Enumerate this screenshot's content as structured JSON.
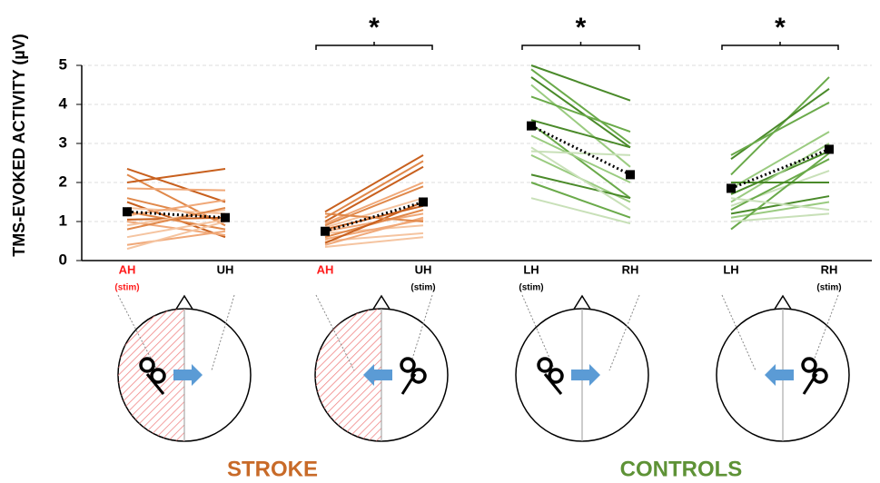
{
  "chart_data": {
    "type": "slope",
    "ylabel": "TMS-EVOKED ACTIVITY (µV)",
    "ylim": [
      0,
      5
    ],
    "yticks": [
      0,
      1,
      2,
      3,
      4,
      5
    ],
    "grid": true,
    "mean_color": "#000000",
    "groups": [
      {
        "label": "STROKE",
        "color": "#c86a28"
      },
      {
        "label": "CONTROLS",
        "color": "#5e9236"
      }
    ],
    "panels": [
      {
        "categories": [
          "AH",
          "UH"
        ],
        "sublabels": [
          "(stim)",
          null
        ],
        "category_colors": [
          "#ff1a1a",
          "#000000"
        ],
        "sublabel_colors": [
          "#ff1a1a",
          "#000000"
        ],
        "mean": [
          1.25,
          1.1
        ],
        "series": [
          {
            "color": "#c8601e",
            "values": [
              2.35,
              1.5
            ]
          },
          {
            "color": "#e0884a",
            "values": [
              2.2,
              0.9
            ]
          },
          {
            "color": "#c8601e",
            "values": [
              2.0,
              2.35
            ]
          },
          {
            "color": "#f0a878",
            "values": [
              1.85,
              1.8
            ]
          },
          {
            "color": "#e0884a",
            "values": [
              1.6,
              1.0
            ]
          },
          {
            "color": "#c8601e",
            "values": [
              1.5,
              0.6
            ]
          },
          {
            "color": "#f5c4a0",
            "values": [
              1.35,
              1.2
            ]
          },
          {
            "color": "#e0884a",
            "values": [
              1.25,
              0.8
            ]
          },
          {
            "color": "#f0a878",
            "values": [
              1.15,
              1.55
            ]
          },
          {
            "color": "#c8601e",
            "values": [
              1.05,
              1.1
            ]
          },
          {
            "color": "#f0a878",
            "values": [
              1.0,
              0.65
            ]
          },
          {
            "color": "#f5c4a0",
            "values": [
              0.9,
              1.3
            ]
          },
          {
            "color": "#e0884a",
            "values": [
              0.8,
              1.35
            ]
          },
          {
            "color": "#f5c4a0",
            "values": [
              0.6,
              1.05
            ]
          },
          {
            "color": "#f0a878",
            "values": [
              0.4,
              0.75
            ]
          },
          {
            "color": "#f5c4a0",
            "values": [
              0.3,
              1.0
            ]
          }
        ]
      },
      {
        "categories": [
          "AH",
          "UH"
        ],
        "sublabels": [
          null,
          "(stim)"
        ],
        "category_colors": [
          "#ff1a1a",
          "#000000"
        ],
        "sublabel_colors": [
          "#000000",
          "#000000"
        ],
        "annotation": "*",
        "mean": [
          0.75,
          1.5
        ],
        "series": [
          {
            "color": "#c8601e",
            "values": [
              1.25,
              2.7
            ]
          },
          {
            "color": "#e0884a",
            "values": [
              1.1,
              2.55
            ]
          },
          {
            "color": "#c8601e",
            "values": [
              1.0,
              2.4
            ]
          },
          {
            "color": "#f0a878",
            "values": [
              0.95,
              2.0
            ]
          },
          {
            "color": "#e0884a",
            "values": [
              0.9,
              1.9
            ]
          },
          {
            "color": "#f5c4a0",
            "values": [
              0.85,
              1.6
            ]
          },
          {
            "color": "#c8601e",
            "values": [
              0.8,
              1.4
            ]
          },
          {
            "color": "#f0a878",
            "values": [
              0.75,
              1.2
            ]
          },
          {
            "color": "#f5c4a0",
            "values": [
              0.7,
              0.9
            ]
          },
          {
            "color": "#e0884a",
            "values": [
              0.6,
              1.3
            ]
          },
          {
            "color": "#f0a878",
            "values": [
              0.55,
              1.05
            ]
          },
          {
            "color": "#f5c4a0",
            "values": [
              0.5,
              0.7
            ]
          },
          {
            "color": "#c8601e",
            "values": [
              0.45,
              1.5
            ]
          },
          {
            "color": "#f0a878",
            "values": [
              0.4,
              1.1
            ]
          },
          {
            "color": "#f5c4a0",
            "values": [
              0.35,
              0.6
            ]
          },
          {
            "color": "#e0884a",
            "values": [
              1.2,
              1.0
            ]
          }
        ]
      },
      {
        "categories": [
          "LH",
          "RH"
        ],
        "sublabels": [
          "(stim)",
          null
        ],
        "category_colors": [
          "#000000",
          "#000000"
        ],
        "sublabel_colors": [
          "#000000",
          "#000000"
        ],
        "annotation": "*",
        "mean": [
          3.45,
          2.2
        ],
        "series": [
          {
            "color": "#4a8a2a",
            "values": [
              5.0,
              4.1
            ]
          },
          {
            "color": "#6aaa4a",
            "values": [
              4.9,
              3.0
            ]
          },
          {
            "color": "#4a8a2a",
            "values": [
              4.7,
              2.9
            ]
          },
          {
            "color": "#9acb80",
            "values": [
              4.5,
              2.4
            ]
          },
          {
            "color": "#6aaa4a",
            "values": [
              4.2,
              3.3
            ]
          },
          {
            "color": "#4a8a2a",
            "values": [
              3.6,
              2.9
            ]
          },
          {
            "color": "#6aaa4a",
            "values": [
              3.5,
              1.6
            ]
          },
          {
            "color": "#9acb80",
            "values": [
              3.2,
              2.0
            ]
          },
          {
            "color": "#c8e0b8",
            "values": [
              2.8,
              2.7
            ]
          },
          {
            "color": "#9acb80",
            "values": [
              2.7,
              1.5
            ]
          },
          {
            "color": "#4a8a2a",
            "values": [
              2.2,
              1.6
            ]
          },
          {
            "color": "#6aaa4a",
            "values": [
              2.0,
              1.1
            ]
          },
          {
            "color": "#c8e0b8",
            "values": [
              1.6,
              0.95
            ]
          },
          {
            "color": "#c8e0b8",
            "values": [
              2.9,
              1.3
            ]
          }
        ]
      },
      {
        "categories": [
          "LH",
          "RH"
        ],
        "sublabels": [
          null,
          "(stim)"
        ],
        "category_colors": [
          "#000000",
          "#000000"
        ],
        "sublabel_colors": [
          "#000000",
          "#000000"
        ],
        "annotation": "*",
        "mean": [
          1.85,
          2.85
        ],
        "series": [
          {
            "color": "#6aaa4a",
            "values": [
              2.2,
              4.7
            ]
          },
          {
            "color": "#4a8a2a",
            "values": [
              2.6,
              4.4
            ]
          },
          {
            "color": "#6aaa4a",
            "values": [
              2.7,
              4.05
            ]
          },
          {
            "color": "#9acb80",
            "values": [
              1.85,
              3.3
            ]
          },
          {
            "color": "#4a8a2a",
            "values": [
              1.7,
              2.8
            ]
          },
          {
            "color": "#9acb80",
            "values": [
              1.5,
              3.0
            ]
          },
          {
            "color": "#c8e0b8",
            "values": [
              1.4,
              2.3
            ]
          },
          {
            "color": "#6aaa4a",
            "values": [
              1.3,
              2.6
            ]
          },
          {
            "color": "#4a8a2a",
            "values": [
              1.2,
              1.65
            ]
          },
          {
            "color": "#9acb80",
            "values": [
              1.1,
              1.5
            ]
          },
          {
            "color": "#6aaa4a",
            "values": [
              0.8,
              2.75
            ]
          },
          {
            "color": "#c8e0b8",
            "values": [
              1.6,
              1.3
            ]
          },
          {
            "color": "#c8e0b8",
            "values": [
              1.0,
              1.2
            ]
          },
          {
            "color": "#4a8a2a",
            "values": [
              2.0,
              2.0
            ]
          }
        ]
      }
    ]
  }
}
